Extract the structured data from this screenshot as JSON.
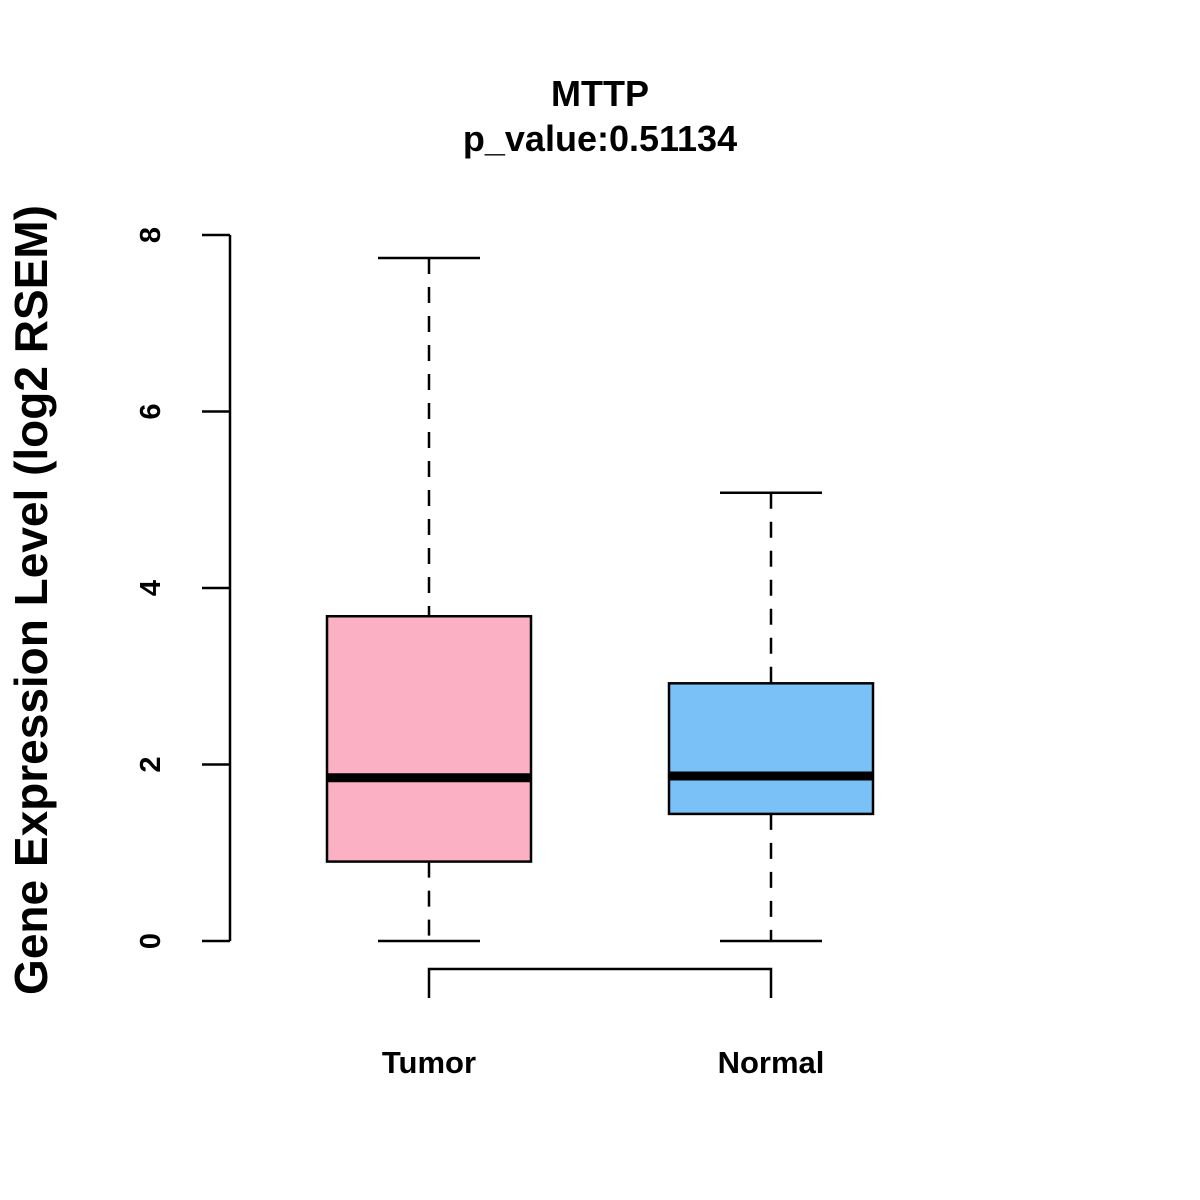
{
  "chart_data": {
    "type": "boxplot",
    "title": "MTTP",
    "subtitle": "p_value:0.51134",
    "xlabel": "",
    "ylabel": "Gene Expression Level (log2 RSEM)",
    "ylim": [
      0,
      8
    ],
    "yticks": [
      0,
      2,
      4,
      6,
      8
    ],
    "grid": false,
    "categories": [
      "Tumor",
      "Normal"
    ],
    "boxes": [
      {
        "name": "Tumor",
        "whisker_low": 0,
        "q1": 0.9,
        "median": 1.85,
        "q3": 3.68,
        "whisker_high": 7.74,
        "color": "#FBB1C3"
      },
      {
        "name": "Normal",
        "whisker_low": 0,
        "q1": 1.44,
        "median": 1.87,
        "q3": 2.92,
        "whisker_high": 5.08,
        "color": "#7AC1F8"
      }
    ],
    "comparison_bracket": [
      "Tumor",
      "Normal"
    ]
  }
}
